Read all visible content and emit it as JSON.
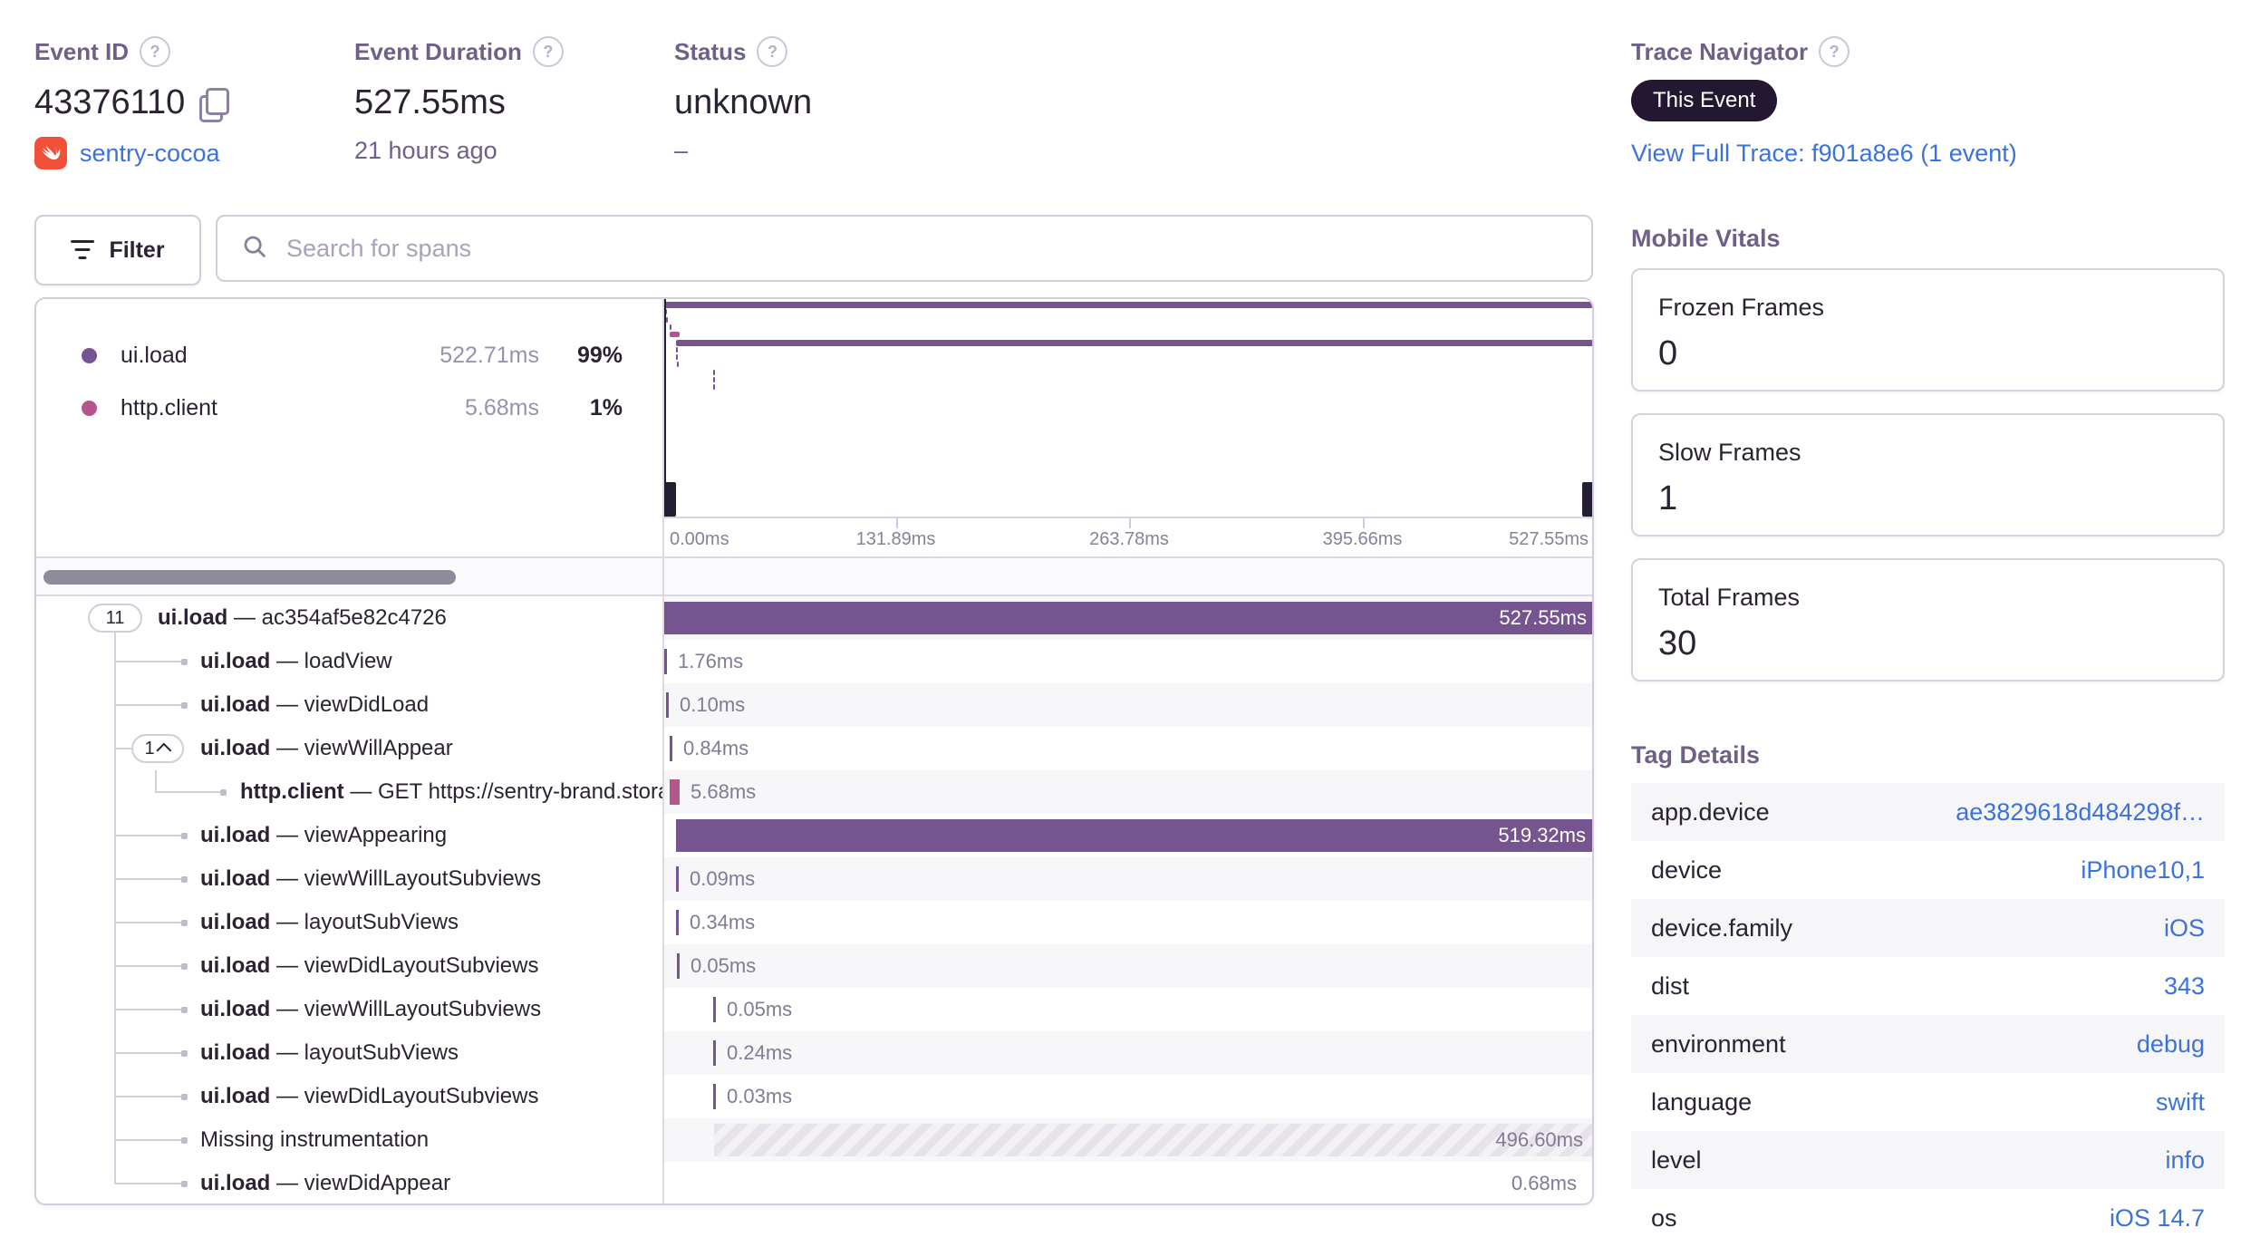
{
  "colors": {
    "purple_span": "#76548f",
    "pink_span": "#b4568c",
    "link_blue": "#3b72dc",
    "hatch_a": "#e6e3ea",
    "hatch_b": "#f3f1f5"
  },
  "header": {
    "event_id": {
      "label": "Event ID",
      "value": "43376110",
      "project": "sentry-cocoa"
    },
    "event_duration": {
      "label": "Event Duration",
      "value": "527.55ms",
      "subtext": "21 hours ago"
    },
    "status": {
      "label": "Status",
      "value": "unknown",
      "subtext": "–"
    },
    "trace": {
      "label": "Trace Navigator",
      "badge": "This Event",
      "link": "View Full Trace: f901a8e6 (1 event)"
    }
  },
  "toolbar": {
    "filter_label": "Filter",
    "search_placeholder": "Search for spans"
  },
  "legend": {
    "items": [
      {
        "op": "ui.load",
        "duration": "522.71ms",
        "percent": "99%",
        "color": "#76548f"
      },
      {
        "op": "http.client",
        "duration": "5.68ms",
        "percent": "1%",
        "color": "#b4568c"
      }
    ]
  },
  "minimap": {
    "axis_labels": [
      "0.00ms",
      "131.89ms",
      "263.78ms",
      "395.66ms",
      "527.55ms"
    ],
    "total_ms": 527.55
  },
  "spans": {
    "total_ms": 527.55,
    "rows": [
      {
        "kind": "root",
        "op": "ui.load",
        "sep": "—",
        "name": "ac354af5e82c4726",
        "count": "11",
        "duration": "527.55ms",
        "start_ms": 0,
        "dur_ms": 527.55,
        "style": "bar"
      },
      {
        "kind": "child",
        "op": "ui.load",
        "sep": "—",
        "name": "loadView",
        "duration": "1.76ms",
        "start_ms": 1.0,
        "dur_ms": 1.76,
        "style": "tick"
      },
      {
        "kind": "child",
        "op": "ui.load",
        "sep": "—",
        "name": "viewDidLoad",
        "duration": "0.10ms",
        "start_ms": 2.2,
        "dur_ms": 0.1,
        "style": "tick"
      },
      {
        "kind": "child-pill",
        "op": "ui.load",
        "sep": "—",
        "name": "viewWillAppear",
        "count": "1",
        "duration": "0.84ms",
        "start_ms": 4.1,
        "dur_ms": 0.84,
        "style": "tick"
      },
      {
        "kind": "grandchild",
        "op": "http.client",
        "sep": "—",
        "name": "GET https://sentry-brand.stora",
        "duration": "5.68ms",
        "start_ms": 4.1,
        "dur_ms": 5.68,
        "style": "tick",
        "pink": true
      },
      {
        "kind": "child",
        "op": "ui.load",
        "sep": "—",
        "name": "viewAppearing",
        "duration": "519.32ms",
        "start_ms": 7.7,
        "dur_ms": 519.32,
        "style": "bar"
      },
      {
        "kind": "child",
        "op": "ui.load",
        "sep": "—",
        "name": "viewWillLayoutSubviews",
        "duration": "0.09ms",
        "start_ms": 7.8,
        "dur_ms": 0.09,
        "style": "tick"
      },
      {
        "kind": "child",
        "op": "ui.load",
        "sep": "—",
        "name": "layoutSubViews",
        "duration": "0.34ms",
        "start_ms": 7.9,
        "dur_ms": 0.34,
        "style": "tick"
      },
      {
        "kind": "child",
        "op": "ui.load",
        "sep": "—",
        "name": "viewDidLayoutSubviews",
        "duration": "0.05ms",
        "start_ms": 8.0,
        "dur_ms": 0.05,
        "style": "tick"
      },
      {
        "kind": "child",
        "op": "ui.load",
        "sep": "—",
        "name": "viewWillLayoutSubviews",
        "duration": "0.05ms",
        "start_ms": 28.5,
        "dur_ms": 0.05,
        "style": "tick"
      },
      {
        "kind": "child",
        "op": "ui.load",
        "sep": "—",
        "name": "layoutSubViews",
        "duration": "0.24ms",
        "start_ms": 28.6,
        "dur_ms": 0.24,
        "style": "tick"
      },
      {
        "kind": "child",
        "op": "ui.load",
        "sep": "—",
        "name": "viewDidLayoutSubviews",
        "duration": "0.03ms",
        "start_ms": 28.8,
        "dur_ms": 0.03,
        "style": "tick"
      },
      {
        "kind": "child",
        "plain": true,
        "name": "Missing instrumentation",
        "duration": "496.60ms",
        "start_ms": 29.0,
        "dur_ms": 496.6,
        "style": "hatch"
      },
      {
        "kind": "child",
        "op": "ui.load",
        "sep": "—",
        "name": "viewDidAppear",
        "duration": "0.68ms",
        "start_ms": 526.8,
        "dur_ms": 0.68,
        "style": "tick",
        "label_side": "left"
      }
    ]
  },
  "mobile_vitals": {
    "title": "Mobile Vitals",
    "cards": [
      {
        "label": "Frozen Frames",
        "value": "0"
      },
      {
        "label": "Slow Frames",
        "value": "1"
      },
      {
        "label": "Total Frames",
        "value": "30"
      }
    ]
  },
  "tag_details": {
    "title": "Tag Details",
    "rows": [
      {
        "key": "app.device",
        "value": "ae3829618d484298f…"
      },
      {
        "key": "device",
        "value": "iPhone10,1"
      },
      {
        "key": "device.family",
        "value": "iOS"
      },
      {
        "key": "dist",
        "value": "343"
      },
      {
        "key": "environment",
        "value": "debug"
      },
      {
        "key": "language",
        "value": "swift"
      },
      {
        "key": "level",
        "value": "info"
      },
      {
        "key": "os",
        "value": "iOS 14.7"
      }
    ]
  }
}
